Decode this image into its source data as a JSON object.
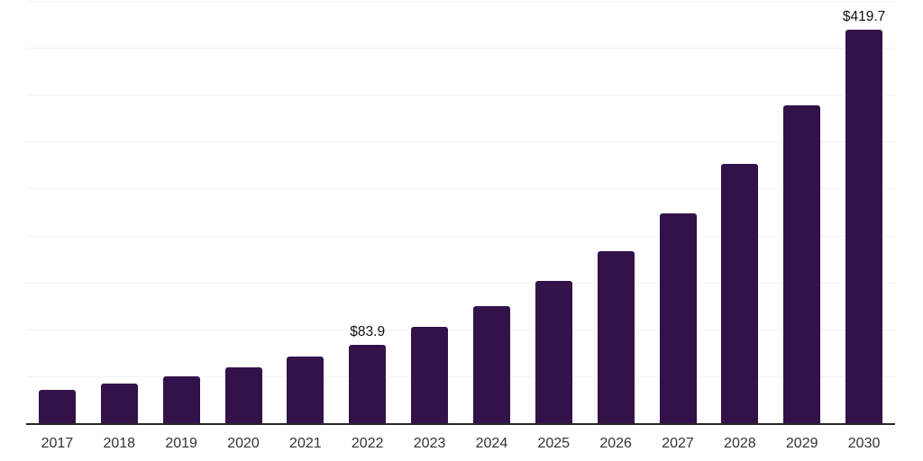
{
  "chart_data": {
    "type": "bar",
    "title": "",
    "xlabel": "",
    "ylabel": "",
    "categories": [
      "2017",
      "2018",
      "2019",
      "2020",
      "2021",
      "2022",
      "2023",
      "2024",
      "2025",
      "2026",
      "2027",
      "2028",
      "2029",
      "2030"
    ],
    "values": [
      35.9,
      42.2,
      49.6,
      59.8,
      70.9,
      83.9,
      103.0,
      124.3,
      151.4,
      183.7,
      223.6,
      276.1,
      339.1,
      419.7
    ],
    "data_labels": [
      null,
      null,
      null,
      null,
      null,
      "$83.9",
      null,
      null,
      null,
      null,
      null,
      null,
      null,
      "$419.7"
    ],
    "ylim": [
      0,
      450
    ],
    "gridline_interval": 50,
    "grid": true,
    "legend": "none",
    "y_axis_labels_visible": false,
    "colors": {
      "bar": "#33124a",
      "gridline": "#f2f2f2",
      "axis_line": "#262626",
      "x_label_text": "#333333",
      "value_label_text": "#111111",
      "background": "#ffffff"
    }
  }
}
